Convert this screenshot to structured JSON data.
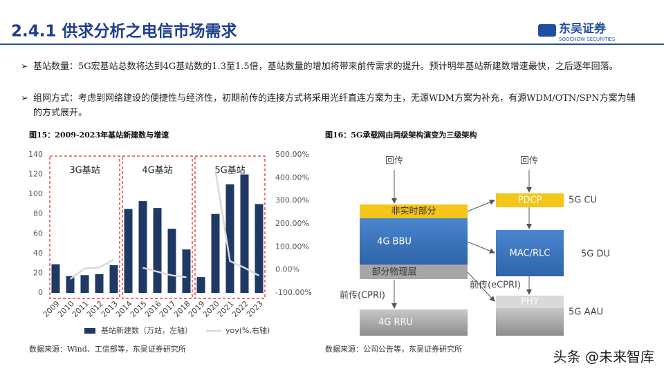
{
  "header": {
    "title": "2.4.1 供求分析之电信市场需求",
    "logo": "东吴证券",
    "logo_sub": "SOOCHOW SECURITIES"
  },
  "bullets": [
    "基站数量：5G宏基站总数将达到4G基站数的1.3至1.5倍，基站数量的增加将带来前传需求的提升。预计明年基站新建数增速最快，之后逐年回落。",
    "组网方式：考虑到网络建设的便捷性与经济性，初期前传的连接方式将采用光纤直连方案为主，无源WDM方案为补充，有源WDM/OTN/SPN方案为辅的方式展开。"
  ],
  "chart_data": {
    "type": "bar",
    "title": "图15：2009-2023年基站新建数与增速",
    "categories": [
      "2009",
      "2010",
      "2011",
      "2012",
      "2013",
      "2014",
      "2015",
      "2016",
      "2017",
      "2018",
      "2019",
      "2020",
      "2021",
      "2022",
      "2023"
    ],
    "series": [
      {
        "name": "基站新建数（万站，左轴）",
        "color": "#1f3864",
        "values": [
          29,
          17,
          18,
          19,
          28,
          85,
          93,
          86,
          65,
          44,
          16,
          80,
          110,
          120,
          90
        ]
      },
      {
        "name": "yoy(%,右轴)",
        "color": "#d9d9d9",
        "type": "line",
        "axis": "y2",
        "values": [
          null,
          -40,
          6,
          10,
          45,
          null,
          9,
          -8,
          -24,
          -32,
          null,
          430,
          38,
          9,
          -25
        ]
      }
    ],
    "ylim": [
      0,
      140
    ],
    "yticks": [
      0,
      20,
      40,
      60,
      80,
      100,
      120,
      140
    ],
    "y2lim": [
      -100,
      500
    ],
    "y2ticks": [
      {
        "value": -100,
        "label": "-100.00%"
      },
      {
        "value": 0,
        "label": "0.00%"
      },
      {
        "value": 100,
        "label": "100.00%"
      },
      {
        "value": 200,
        "label": "200.00%"
      },
      {
        "value": 300,
        "label": "300.00%"
      },
      {
        "value": 400,
        "label": "400.00%"
      },
      {
        "value": 500,
        "label": "500.00%"
      }
    ],
    "annotations": [
      "3G基站",
      "4G基站",
      "5G基站"
    ],
    "source": "数据来源：Wind、工信部等，东吴证券研究所"
  },
  "diagram": {
    "title": "图16：5G承载网由两级架构演变为三级架构",
    "left_backhaul": "回传",
    "right_backhaul": "回传",
    "non_realtime": "非实时部分",
    "bbu": "4G BBU",
    "partial_phy": "部分物理层",
    "cpri": "前传(CPRI)",
    "rru": "4G RRU",
    "pdcp": "PDCP",
    "cu": "5G CU",
    "mac": "MAC/RLC",
    "du": "5G DU",
    "ecpri": "前传(eCPRI)",
    "phy": "PHY",
    "aau": "5G AAU",
    "source": "数据来源：公司公告等，东吴证券研究所"
  },
  "watermark": "头条 @未来智库"
}
